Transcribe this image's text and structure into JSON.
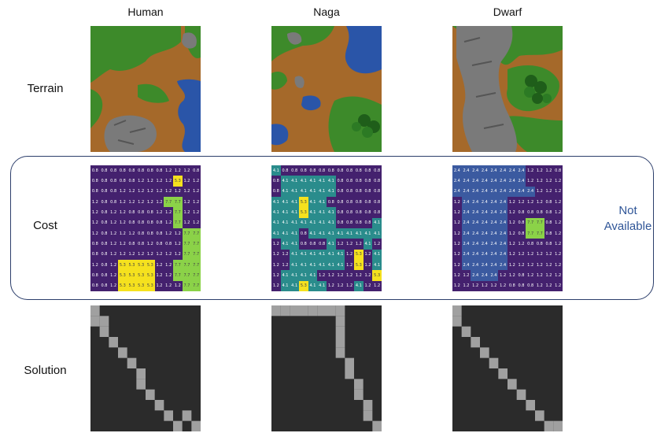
{
  "columns": [
    "Human",
    "Naga",
    "Dwarf"
  ],
  "rows": [
    "Terrain",
    "Cost",
    "Solution"
  ],
  "not_available": [
    "Not",
    "Available"
  ],
  "colors": {
    "grass": "#3d8a2a",
    "dirt": "#a5692a",
    "water": "#2a55a8",
    "rock": "#7a7a7a",
    "cost_low": "#44216e",
    "cost_mid": "#3b5aa0",
    "cost_teal": "#2a8c8c",
    "cost_green": "#8bd248",
    "cost_yellow": "#f5e11e",
    "solution_bg": "#2b2b2b",
    "solution_path": "#a0a0a0"
  },
  "cost_grids": [
    [
      [
        "0.8",
        "0.8",
        "0.8",
        "0.8",
        "0.8",
        "0.8",
        "0.8",
        "0.8",
        "1.2",
        "1.2",
        "1.2",
        "0.8"
      ],
      [
        "0.8",
        "0.8",
        "0.8",
        "0.8",
        "0.8",
        "1.2",
        "1.2",
        "1.2",
        "1.2",
        "5.3",
        "1.2",
        "1.2"
      ],
      [
        "0.8",
        "0.8",
        "0.8",
        "1.2",
        "1.2",
        "1.2",
        "1.2",
        "1.2",
        "1.2",
        "1.2",
        "1.2",
        "1.2"
      ],
      [
        "1.2",
        "0.8",
        "0.8",
        "1.2",
        "1.2",
        "1.2",
        "1.2",
        "1.2",
        "7.7",
        "7.7",
        "1.2",
        "1.2"
      ],
      [
        "1.2",
        "0.8",
        "1.2",
        "1.2",
        "0.8",
        "0.8",
        "0.8",
        "1.2",
        "1.2",
        "7.7",
        "1.2",
        "1.2"
      ],
      [
        "1.2",
        "0.8",
        "1.2",
        "1.2",
        "0.8",
        "0.8",
        "0.8",
        "0.8",
        "1.2",
        "7.7",
        "1.2",
        "1.2"
      ],
      [
        "1.2",
        "0.8",
        "1.2",
        "1.2",
        "1.2",
        "0.8",
        "0.8",
        "0.8",
        "1.2",
        "1.2",
        "7.7",
        "7.7"
      ],
      [
        "0.8",
        "0.8",
        "1.2",
        "1.2",
        "0.8",
        "0.8",
        "1.2",
        "0.8",
        "0.8",
        "1.2",
        "7.7",
        "7.7"
      ],
      [
        "0.8",
        "0.8",
        "1.2",
        "1.2",
        "1.2",
        "1.2",
        "1.2",
        "1.2",
        "1.2",
        "1.2",
        "7.7",
        "7.7"
      ],
      [
        "1.2",
        "0.8",
        "1.2",
        "5.3",
        "5.3",
        "5.3",
        "5.3",
        "1.2",
        "1.2",
        "7.7",
        "7.7",
        "7.7"
      ],
      [
        "0.8",
        "0.8",
        "1.2",
        "5.3",
        "5.3",
        "5.3",
        "5.3",
        "1.2",
        "1.2",
        "7.7",
        "7.7",
        "7.7"
      ],
      [
        "0.8",
        "0.8",
        "1.2",
        "5.3",
        "5.3",
        "5.3",
        "5.3",
        "1.2",
        "1.2",
        "1.2",
        "7.7",
        "7.7"
      ]
    ],
    [
      [
        "4.1",
        "0.8",
        "0.8",
        "0.8",
        "0.8",
        "0.8",
        "0.8",
        "0.8",
        "0.8",
        "0.8",
        "0.8",
        "0.8"
      ],
      [
        "0.8",
        "4.1",
        "4.1",
        "4.1",
        "4.1",
        "4.1",
        "4.1",
        "0.8",
        "0.8",
        "0.8",
        "0.8",
        "0.8"
      ],
      [
        "0.8",
        "4.1",
        "4.1",
        "4.1",
        "4.1",
        "4.1",
        "4.1",
        "0.8",
        "0.8",
        "0.8",
        "0.8",
        "0.8"
      ],
      [
        "4.1",
        "4.1",
        "4.1",
        "5.3",
        "4.1",
        "4.1",
        "0.8",
        "0.8",
        "0.8",
        "0.8",
        "0.8",
        "0.8"
      ],
      [
        "4.1",
        "4.1",
        "4.1",
        "5.3",
        "4.1",
        "4.1",
        "4.1",
        "0.8",
        "0.8",
        "0.8",
        "0.8",
        "0.8"
      ],
      [
        "4.1",
        "4.1",
        "4.1",
        "4.1",
        "4.1",
        "4.1",
        "4.1",
        "0.8",
        "0.8",
        "0.8",
        "0.8",
        "4.1"
      ],
      [
        "4.1",
        "4.1",
        "4.1",
        "0.8",
        "4.1",
        "4.1",
        "4.1",
        "4.1",
        "4.1",
        "4.1",
        "4.1",
        "4.1"
      ],
      [
        "1.2",
        "4.1",
        "4.1",
        "0.8",
        "0.8",
        "0.8",
        "4.1",
        "1.2",
        "1.2",
        "1.2",
        "4.1",
        "1.2"
      ],
      [
        "1.2",
        "1.2",
        "4.1",
        "4.1",
        "4.1",
        "4.1",
        "4.1",
        "4.1",
        "1.2",
        "5.3",
        "1.2",
        "4.1"
      ],
      [
        "1.2",
        "1.2",
        "4.1",
        "4.1",
        "4.1",
        "4.1",
        "4.1",
        "4.1",
        "1.2",
        "5.3",
        "1.2",
        "4.1"
      ],
      [
        "1.2",
        "4.1",
        "4.1",
        "4.1",
        "4.1",
        "1.2",
        "1.2",
        "1.2",
        "1.2",
        "1.2",
        "1.2",
        "5.3"
      ],
      [
        "1.2",
        "4.1",
        "4.1",
        "5.3",
        "4.1",
        "4.1",
        "1.2",
        "1.2",
        "1.2",
        "4.1",
        "1.2",
        "1.2"
      ]
    ],
    [
      [
        "2.4",
        "2.4",
        "2.4",
        "2.4",
        "2.4",
        "2.4",
        "2.4",
        "2.4",
        "1.2",
        "1.2",
        "1.2",
        "0.8"
      ],
      [
        "2.4",
        "2.4",
        "2.4",
        "2.4",
        "2.4",
        "2.4",
        "2.4",
        "2.4",
        "1.2",
        "1.2",
        "1.2",
        "1.2"
      ],
      [
        "2.4",
        "2.4",
        "2.4",
        "2.4",
        "2.4",
        "2.4",
        "2.4",
        "2.4",
        "2.4",
        "1.2",
        "1.2",
        "1.2"
      ],
      [
        "1.2",
        "2.4",
        "2.4",
        "2.4",
        "2.4",
        "2.4",
        "1.2",
        "1.2",
        "1.2",
        "1.2",
        "0.8",
        "1.2"
      ],
      [
        "1.2",
        "2.4",
        "2.4",
        "2.4",
        "2.4",
        "2.4",
        "1.2",
        "0.8",
        "0.8",
        "0.8",
        "0.8",
        "1.2"
      ],
      [
        "1.2",
        "2.4",
        "2.4",
        "2.4",
        "2.4",
        "2.4",
        "1.2",
        "0.8",
        "7.7",
        "7.7",
        "0.8",
        "1.2"
      ],
      [
        "1.2",
        "2.4",
        "2.4",
        "2.4",
        "2.4",
        "2.4",
        "1.2",
        "0.8",
        "7.7",
        "7.7",
        "0.8",
        "1.2"
      ],
      [
        "1.2",
        "2.4",
        "2.4",
        "2.4",
        "2.4",
        "2.4",
        "1.2",
        "1.2",
        "0.8",
        "0.8",
        "0.8",
        "1.2"
      ],
      [
        "1.2",
        "2.4",
        "2.4",
        "2.4",
        "2.4",
        "2.4",
        "1.2",
        "1.2",
        "1.2",
        "1.2",
        "1.2",
        "1.2"
      ],
      [
        "1.2",
        "2.4",
        "2.4",
        "2.4",
        "2.4",
        "2.4",
        "1.2",
        "1.2",
        "1.2",
        "1.2",
        "1.2",
        "1.2"
      ],
      [
        "1.2",
        "1.2",
        "2.4",
        "2.4",
        "2.4",
        "1.2",
        "1.2",
        "0.8",
        "1.2",
        "1.2",
        "1.2",
        "1.2"
      ],
      [
        "1.2",
        "1.2",
        "1.2",
        "1.2",
        "1.2",
        "1.2",
        "0.8",
        "0.8",
        "0.8",
        "1.2",
        "1.2",
        "1.2"
      ]
    ]
  ],
  "solution_paths": [
    [
      [
        0,
        0
      ],
      [
        1,
        0
      ],
      [
        1,
        1
      ],
      [
        2,
        1
      ],
      [
        3,
        2
      ],
      [
        4,
        3
      ],
      [
        5,
        4
      ],
      [
        6,
        5
      ],
      [
        7,
        5
      ],
      [
        8,
        6
      ],
      [
        9,
        7
      ],
      [
        10,
        8
      ],
      [
        11,
        9
      ],
      [
        10,
        10
      ],
      [
        11,
        11
      ]
    ],
    [
      [
        0,
        0
      ],
      [
        0,
        1
      ],
      [
        0,
        2
      ],
      [
        0,
        3
      ],
      [
        0,
        4
      ],
      [
        0,
        5
      ],
      [
        0,
        6
      ],
      [
        0,
        7
      ],
      [
        1,
        7
      ],
      [
        2,
        7
      ],
      [
        3,
        7
      ],
      [
        4,
        7
      ],
      [
        5,
        8
      ],
      [
        6,
        8
      ],
      [
        7,
        9
      ],
      [
        8,
        9
      ],
      [
        9,
        10
      ],
      [
        10,
        10
      ],
      [
        11,
        11
      ]
    ],
    [
      [
        0,
        0
      ],
      [
        1,
        0
      ],
      [
        2,
        1
      ],
      [
        3,
        2
      ],
      [
        4,
        3
      ],
      [
        5,
        4
      ],
      [
        6,
        5
      ],
      [
        7,
        6
      ],
      [
        8,
        7
      ],
      [
        9,
        8
      ],
      [
        10,
        9
      ],
      [
        11,
        10
      ],
      [
        11,
        11
      ]
    ]
  ]
}
